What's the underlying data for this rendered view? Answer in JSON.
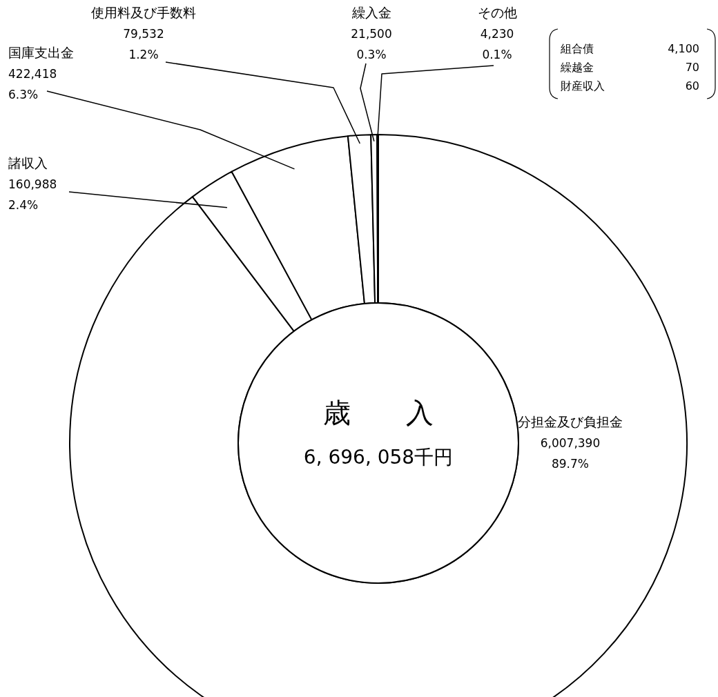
{
  "chart_data": {
    "type": "donut",
    "title": "歳　　入",
    "subtitle": "6, 696, 058千円",
    "categories": [
      "分担金及び負担金",
      "諸収入",
      "国庫支出金",
      "使用料及び手数料",
      "繰入金",
      "その他"
    ],
    "values": [
      6007390,
      160988,
      422418,
      79532,
      21500,
      4230
    ],
    "colors": [
      "#ffffff",
      "#ffffff",
      "#ffffff",
      "#ffffff",
      "#ffffff",
      "#ffffff"
    ],
    "value_labels": [
      "6,007,390 89.7%",
      "160,988 2.4%",
      "422,418 6.3%",
      "79,532 1.2%",
      "21,500 0.3%",
      "4,230 0.1%"
    ],
    "annotations": [
      "組合債",
      "4,100",
      "繰越金",
      "70",
      "財産収入",
      "60"
    ]
  }
}
